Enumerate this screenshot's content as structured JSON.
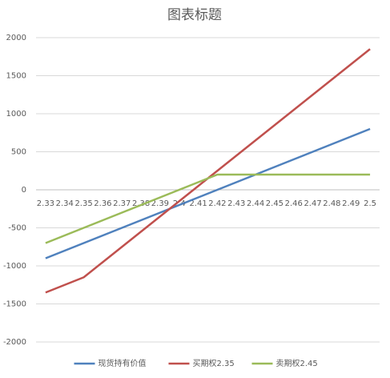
{
  "chart_data": {
    "type": "line",
    "title": "图表标题",
    "categories": [
      "2.33",
      "2.34",
      "2.35",
      "2.36",
      "2.37",
      "2.38",
      "2.39",
      "2.4",
      "2.41",
      "2.42",
      "2.43",
      "2.44",
      "2.45",
      "2.46",
      "2.47",
      "2.48",
      "2.49",
      "2.5"
    ],
    "series": [
      {
        "name": "现货持有价值",
        "color": "#4f81bd",
        "values": [
          -900,
          -800,
          -700,
          -600,
          -500,
          -400,
          -300,
          -200,
          -100,
          0,
          100,
          200,
          300,
          400,
          500,
          600,
          700,
          800
        ]
      },
      {
        "name": "买期权2.35",
        "color": "#c0504d",
        "values": [
          -1350,
          -1250,
          -1150,
          -950,
          -750,
          -550,
          -350,
          -150,
          50,
          250,
          450,
          650,
          850,
          1050,
          1250,
          1450,
          1650,
          1850
        ]
      },
      {
        "name": "卖期权2.45",
        "color": "#9bbb59",
        "values": [
          -700,
          -600,
          -500,
          -400,
          -300,
          -200,
          -100,
          0,
          100,
          200,
          200,
          200,
          200,
          200,
          200,
          200,
          200,
          200
        ]
      }
    ],
    "ylim": [
      -2000,
      2000
    ],
    "yticks": [
      -2000,
      -1500,
      -1000,
      -500,
      0,
      500,
      1000,
      1500,
      2000
    ],
    "grid": true,
    "legend": "bottom"
  }
}
